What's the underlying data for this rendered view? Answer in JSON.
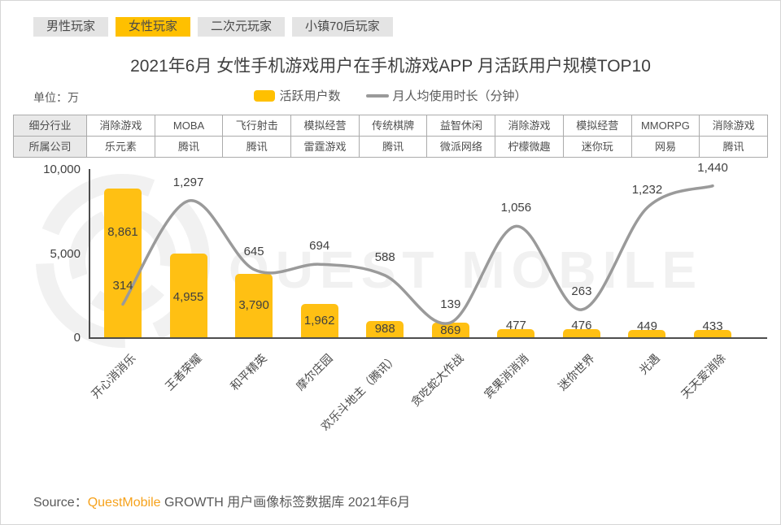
{
  "tabs": {
    "items": [
      {
        "key": "male-players",
        "label": "男性玩家",
        "active": false
      },
      {
        "key": "female-players",
        "label": "女性玩家",
        "active": true
      },
      {
        "key": "acg-players",
        "label": "二次元玩家",
        "active": false
      },
      {
        "key": "town-post70s-players",
        "label": "小镇70后玩家",
        "active": false
      }
    ],
    "active_bg": "#ffc000",
    "inactive_bg": "#e4e4e4"
  },
  "title": "2021年6月 女性手机游戏用户在手机游戏APP 月活跃用户规模TOP10",
  "unit_label": "单位：万",
  "legend": {
    "bar_label": "活跃用户数",
    "line_label": "月人均使用时长（分钟）",
    "bar_color": "#ffc000",
    "line_color": "#9a9a9a"
  },
  "info_table": {
    "row_headers": [
      "细分行业",
      "所属公司"
    ],
    "industries": [
      "消除游戏",
      "MOBA",
      "飞行射击",
      "模拟经营",
      "传统棋牌",
      "益智休闲",
      "消除游戏",
      "模拟经营",
      "MMORPG",
      "消除游戏"
    ],
    "companies": [
      "乐元素",
      "腾讯",
      "腾讯",
      "雷霆游戏",
      "腾讯",
      "微派网络",
      "柠檬微趣",
      "迷你玩",
      "网易",
      "腾讯"
    ]
  },
  "chart_data": {
    "type": "combo",
    "title": "2021年6月 女性手机游戏用户在手机游戏APP 月活跃用户规模TOP10",
    "unit": "万",
    "categories": [
      "开心消消乐",
      "王者荣耀",
      "和平精英",
      "摩尔庄园",
      "欢乐斗地主（腾讯）",
      "贪吃蛇大作战",
      "宾果消消消",
      "迷你世界",
      "光遇",
      "天天爱消除"
    ],
    "series": [
      {
        "name": "活跃用户数",
        "type": "bar",
        "values": [
          8861,
          4955,
          3790,
          1962,
          988,
          869,
          477,
          476,
          449,
          433
        ]
      },
      {
        "name": "月人均使用时长（分钟）",
        "type": "line",
        "values": [
          314,
          1297,
          645,
          694,
          588,
          139,
          1056,
          263,
          1232,
          1440
        ]
      }
    ],
    "ylim": [
      0,
      10000
    ],
    "yticks": [
      0,
      5000,
      10000
    ],
    "secondary_ylim": [
      0,
      1600
    ],
    "grid": false,
    "legend_position": "top"
  },
  "watermark": {
    "text": "QUEST MOBILE"
  },
  "source": {
    "prefix": "Source：",
    "brand": "QuestMobile",
    "suffix": " GROWTH 用户画像标签数据库 2021年6月",
    "brand_color": "#f6a21c"
  }
}
